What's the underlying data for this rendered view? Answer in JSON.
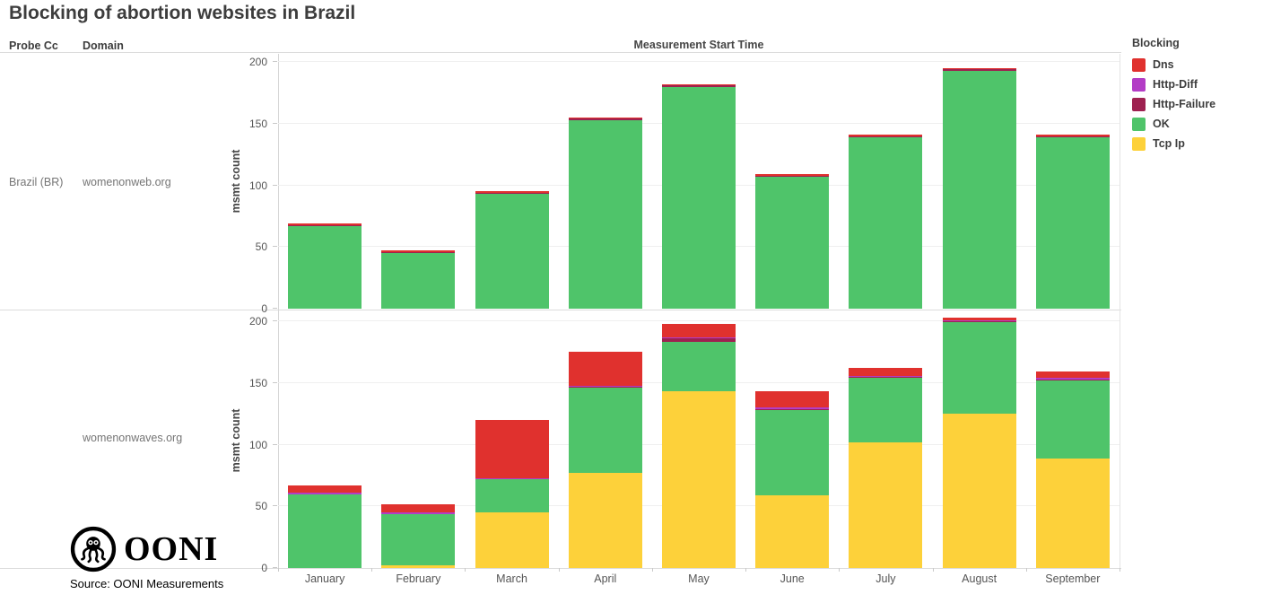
{
  "title": "Blocking of abortion websites in Brazil",
  "columns": {
    "probe_cc": "Probe Cc",
    "domain": "Domain"
  },
  "axis": {
    "x_title": "Measurement Start Time",
    "y_label": "msmt count",
    "y_ticks": [
      0,
      50,
      100,
      150,
      200
    ],
    "ylim": [
      0,
      200
    ]
  },
  "months": [
    "January",
    "February",
    "March",
    "April",
    "May",
    "June",
    "July",
    "August",
    "September"
  ],
  "legend": {
    "title": "Blocking",
    "items": [
      {
        "label": "Dns",
        "color": "#e0312e"
      },
      {
        "label": "Http-Diff",
        "color": "#b33dc6"
      },
      {
        "label": "Http-Failure",
        "color": "#9e2150"
      },
      {
        "label": "OK",
        "color": "#4fc46a"
      },
      {
        "label": "Tcp Ip",
        "color": "#fdd13a"
      }
    ]
  },
  "rows": [
    {
      "probe_cc": "Brazil (BR)",
      "domain": "womenonweb.org"
    },
    {
      "probe_cc": "",
      "domain": "womenonwaves.org"
    }
  ],
  "chart_data": [
    {
      "type": "bar",
      "stacked": true,
      "title": "womenonweb.org",
      "categories": [
        "January",
        "February",
        "March",
        "April",
        "May",
        "June",
        "July",
        "August",
        "September"
      ],
      "series": [
        {
          "name": "Tcp Ip",
          "color": "#fdd13a",
          "values": [
            0,
            0,
            0,
            0,
            0,
            0,
            0,
            0,
            0
          ]
        },
        {
          "name": "OK",
          "color": "#4fc46a",
          "values": [
            67,
            45,
            93,
            153,
            180,
            107,
            139,
            193,
            139
          ]
        },
        {
          "name": "Http-Failure",
          "color": "#9e2150",
          "values": [
            1,
            1,
            1,
            1,
            1,
            1,
            1,
            1,
            1
          ]
        },
        {
          "name": "Http-Diff",
          "color": "#b33dc6",
          "values": [
            0,
            0,
            0,
            0,
            0,
            0,
            0,
            0,
            0
          ]
        },
        {
          "name": "Dns",
          "color": "#e0312e",
          "values": [
            1,
            1,
            1,
            1,
            1,
            1,
            1,
            1,
            1
          ]
        }
      ],
      "totals": [
        69,
        47,
        95,
        155,
        182,
        109,
        141,
        195,
        141
      ],
      "xlabel": "Measurement Start Time",
      "ylabel": "msmt count",
      "ylim": [
        0,
        200
      ],
      "grid": true
    },
    {
      "type": "bar",
      "stacked": true,
      "title": "womenonwaves.org",
      "categories": [
        "January",
        "February",
        "March",
        "April",
        "May",
        "June",
        "July",
        "August",
        "September"
      ],
      "series": [
        {
          "name": "Tcp Ip",
          "color": "#fdd13a",
          "values": [
            0,
            2,
            45,
            77,
            143,
            59,
            102,
            125,
            89
          ]
        },
        {
          "name": "OK",
          "color": "#4fc46a",
          "values": [
            60,
            42,
            27,
            69,
            40,
            69,
            52,
            74,
            63
          ]
        },
        {
          "name": "Http-Failure",
          "color": "#9e2150",
          "values": [
            0,
            0,
            0,
            1,
            3,
            1,
            1,
            1,
            1
          ]
        },
        {
          "name": "Http-Diff",
          "color": "#b33dc6",
          "values": [
            1,
            1,
            1,
            1,
            1,
            1,
            1,
            1,
            1
          ]
        },
        {
          "name": "Dns",
          "color": "#e0312e",
          "values": [
            6,
            7,
            47,
            27,
            11,
            13,
            6,
            2,
            5
          ]
        }
      ],
      "totals": [
        67,
        52,
        120,
        175,
        198,
        143,
        162,
        203,
        159
      ],
      "xlabel": "Measurement Start Time",
      "ylabel": "msmt count",
      "ylim": [
        0,
        200
      ],
      "grid": true
    }
  ],
  "footer": {
    "logo_text": "OONI",
    "source": "Source: OONI Measurements"
  }
}
